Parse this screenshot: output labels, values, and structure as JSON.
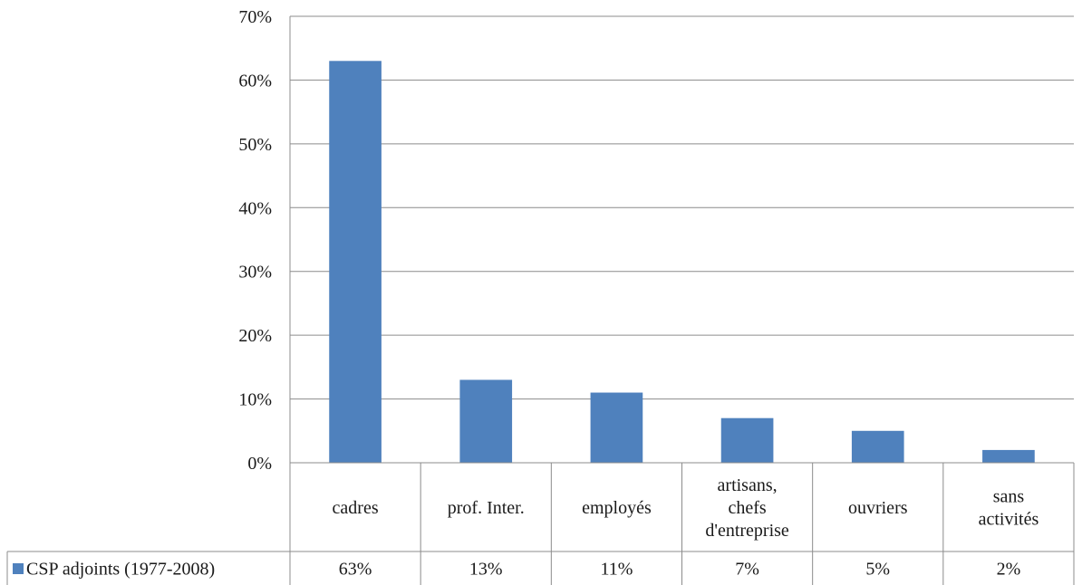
{
  "chart_data": {
    "type": "bar",
    "categories": [
      [
        "cadres"
      ],
      [
        "prof. Inter."
      ],
      [
        "employés"
      ],
      [
        "artisans,",
        "chefs",
        "d'entreprise"
      ],
      [
        "ouvriers"
      ],
      [
        "sans",
        "activités"
      ]
    ],
    "series": [
      {
        "name": "CSP adjoints (1977-2008)",
        "values": [
          63,
          13,
          11,
          7,
          5,
          2
        ],
        "value_labels": [
          "63%",
          "13%",
          "11%",
          "7%",
          "5%",
          "2%"
        ],
        "color": "#4f81bd"
      }
    ],
    "y_ticks": [
      "0%",
      "10%",
      "20%",
      "30%",
      "40%",
      "50%",
      "60%",
      "70%"
    ],
    "ylim": [
      0,
      70
    ],
    "grid": true,
    "data_table": true,
    "legend_position": "left of data table"
  }
}
